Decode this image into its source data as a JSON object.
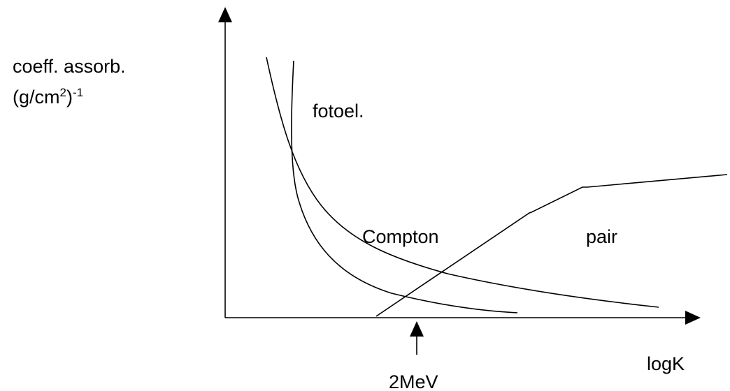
{
  "y_label": {
    "line1": "coeff. assorb.",
    "line2": {
      "unit": "(g/cm",
      "exp1": "2",
      "close": ")",
      "exp2": "-1"
    }
  },
  "x_label": "logK",
  "curves": [
    {
      "label": "fotoel."
    },
    {
      "label": "Compton"
    },
    {
      "label": "pair"
    }
  ],
  "marker": {
    "label": "2MeV"
  }
}
